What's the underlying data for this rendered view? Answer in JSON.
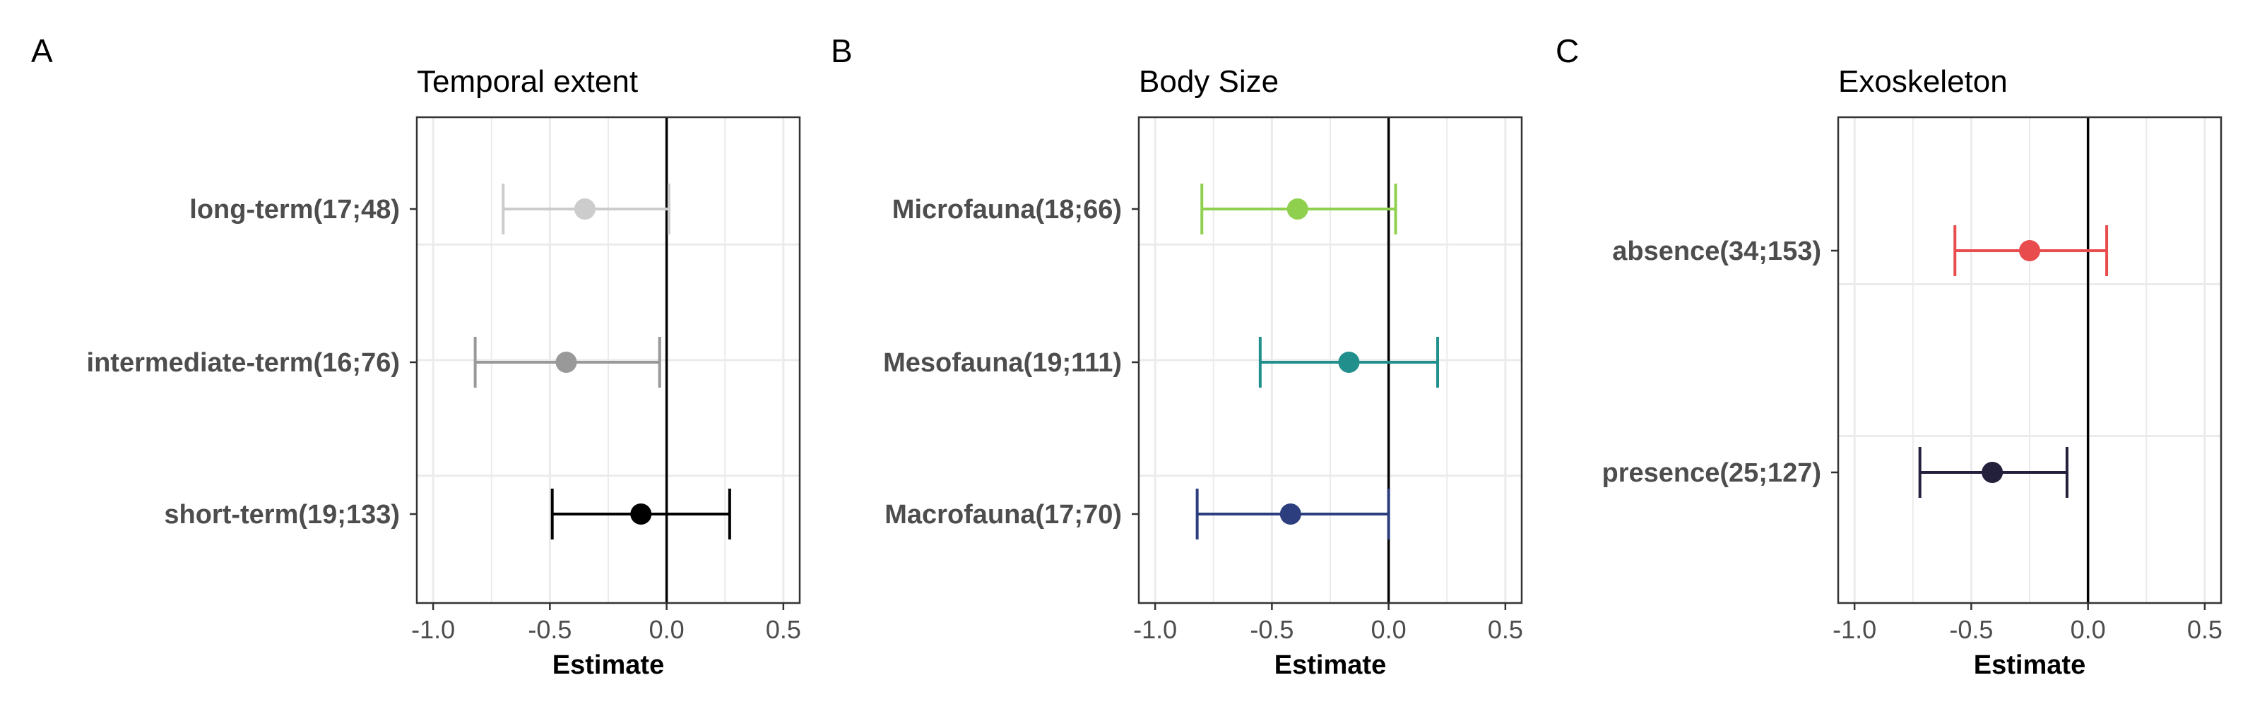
{
  "chart_data": [
    {
      "type": "forest",
      "panel_letter": "A",
      "title": "Temporal extent",
      "xlabel": "Estimate",
      "xlim": [
        -1.07,
        0.57
      ],
      "xticks": [
        -1.0,
        -0.5,
        0.0,
        0.5
      ],
      "xtick_labels": [
        "-1.0",
        "-0.5",
        "0.0",
        "0.5"
      ],
      "reference_line": 0,
      "grid": true,
      "categories": [
        "long-term(17;48)",
        "intermediate-term(16;76)",
        "short-term(19;133)"
      ],
      "estimates": [
        -0.35,
        -0.43,
        -0.11
      ],
      "lower": [
        -0.7,
        -0.82,
        -0.49
      ],
      "upper": [
        0.01,
        -0.03,
        0.27
      ],
      "colors": [
        "#cccccc",
        "#999999",
        "#000000"
      ]
    },
    {
      "type": "forest",
      "panel_letter": "B",
      "title": "Body Size",
      "xlabel": "Estimate",
      "xlim": [
        -1.07,
        0.57
      ],
      "xticks": [
        -1.0,
        -0.5,
        0.0,
        0.5
      ],
      "xtick_labels": [
        "-1.0",
        "-0.5",
        "0.0",
        "0.5"
      ],
      "reference_line": 0,
      "grid": true,
      "categories": [
        "Microfauna(18;66)",
        "Mesofauna(19;111)",
        "Macrofauna(17;70)"
      ],
      "estimates": [
        -0.39,
        -0.17,
        -0.42
      ],
      "lower": [
        -0.8,
        -0.55,
        -0.82
      ],
      "upper": [
        0.03,
        0.21,
        0.0
      ],
      "colors": [
        "#8fd14f",
        "#21908c",
        "#2c3e7e"
      ]
    },
    {
      "type": "forest",
      "panel_letter": "C",
      "title": "Exoskeleton",
      "xlabel": "Estimate",
      "xlim": [
        -1.07,
        0.57
      ],
      "xticks": [
        -1.0,
        -0.5,
        0.0,
        0.5
      ],
      "xtick_labels": [
        "-1.0",
        "-0.5",
        "0.0",
        "0.5"
      ],
      "reference_line": 0,
      "grid": true,
      "categories": [
        "absence(34;153)",
        "presence(25;127)"
      ],
      "estimates": [
        -0.25,
        -0.41
      ],
      "lower": [
        -0.57,
        -0.72
      ],
      "upper": [
        0.08,
        -0.09
      ],
      "colors": [
        "#e84c4c",
        "#23203b"
      ]
    }
  ]
}
